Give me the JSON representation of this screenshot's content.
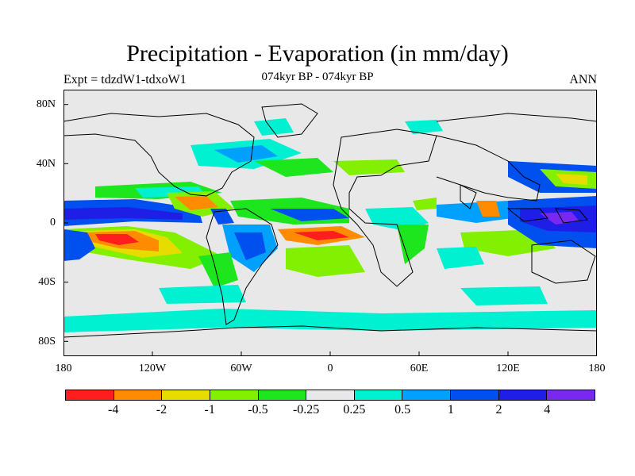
{
  "title": "Precipitation - Evaporation (in mm/day)",
  "subtitle": "074kyr BP - 074kyr BP",
  "left_label": "Expt = tdzdW1-tdxoW1",
  "right_label": "ANN",
  "map": {
    "lat_ticks": [
      "80N",
      "40N",
      "0",
      "40S",
      "80S"
    ],
    "lon_ticks": [
      "180",
      "120W",
      "60W",
      "0",
      "60E",
      "120E",
      "180"
    ],
    "land_color": "#e8e8e8",
    "coast_color": "#000000"
  },
  "colorbar": {
    "colors": [
      "#ff1e1e",
      "#ff8c00",
      "#e6dc00",
      "#82f000",
      "#1ee61e",
      "#e8e8e8",
      "#00f0d2",
      "#00a0ff",
      "#0050f0",
      "#1e1ee6",
      "#7828f0"
    ],
    "labels": [
      "-4",
      "-2",
      "-1",
      "-0.5",
      "-0.25",
      "0.25",
      "0.5",
      "1",
      "2",
      "4"
    ]
  }
}
